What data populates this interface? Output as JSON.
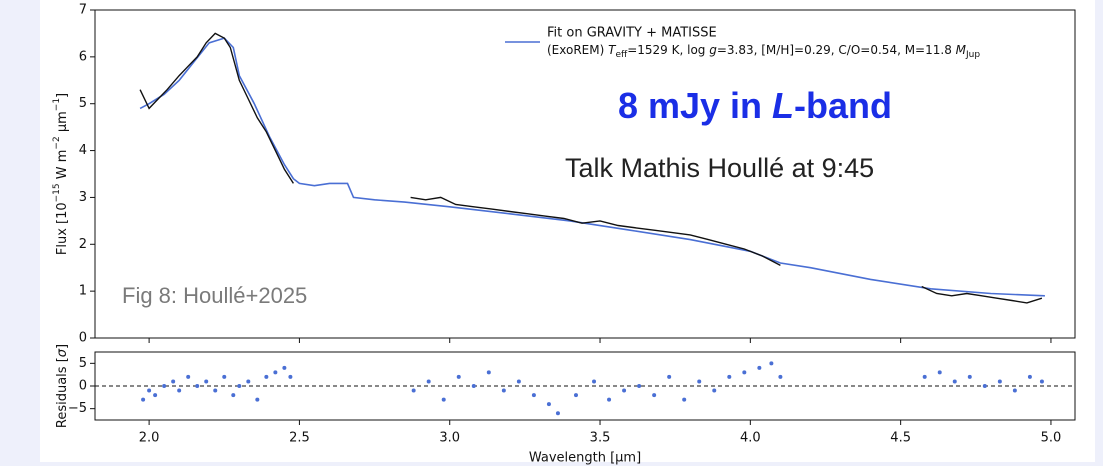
{
  "chart_data": [
    {
      "type": "line",
      "ylabel_parts": [
        "Flux [10",
        "−15",
        " W m",
        "−2",
        " μm",
        "−1",
        "]"
      ],
      "annotations": {
        "headline_parts": [
          "8 mJy in ",
          "L",
          "-band"
        ],
        "talk": "Talk Mathis Houllé at 9:45",
        "figure_ref": "Fig 8: Houllé+2025"
      },
      "xlim": [
        1.82,
        5.08
      ],
      "ylim": [
        0,
        7
      ],
      "yticks": [
        0,
        1,
        2,
        3,
        4,
        5,
        6,
        7
      ],
      "legend": "upper right",
      "series": [
        {
          "name": "Fit on GRAVITY + MATISSE",
          "name_detail_parts": [
            "(ExoREM) ",
            "T",
            "eff",
            "=1529 K, log ",
            "g",
            "=3.83, [M/H]=0.29, C/O=0.54, M=11.8 ",
            "M",
            "Jup"
          ],
          "color": "#4a6fd4",
          "x": [
            1.97,
            2.0,
            2.05,
            2.1,
            2.15,
            2.2,
            2.25,
            2.28,
            2.3,
            2.35,
            2.4,
            2.45,
            2.48,
            2.5,
            2.55,
            2.6,
            2.66,
            2.68,
            2.75,
            2.85,
            3.0,
            3.2,
            3.4,
            3.6,
            3.8,
            4.0,
            4.1,
            4.2,
            4.4,
            4.6,
            4.8,
            4.98
          ],
          "values": [
            4.9,
            5.0,
            5.2,
            5.5,
            5.9,
            6.3,
            6.4,
            6.2,
            5.6,
            5.0,
            4.3,
            3.7,
            3.4,
            3.3,
            3.25,
            3.3,
            3.3,
            3.0,
            2.95,
            2.9,
            2.8,
            2.65,
            2.5,
            2.3,
            2.1,
            1.85,
            1.6,
            1.5,
            1.25,
            1.05,
            0.95,
            0.9
          ]
        },
        {
          "color": "#111111",
          "x": [
            1.97,
            2.0,
            2.03,
            2.06,
            2.1,
            2.13,
            2.16,
            2.19,
            2.22,
            2.25,
            2.27,
            2.3,
            2.33,
            2.36,
            2.39,
            2.42,
            2.45,
            2.48,
            2.6,
            2.87,
            2.92,
            2.97,
            3.02,
            3.08,
            3.14,
            3.2,
            3.26,
            3.32,
            3.38,
            3.44,
            3.5,
            3.56,
            3.62,
            3.68,
            3.74,
            3.8,
            3.86,
            3.92,
            3.98,
            4.04,
            4.1,
            4.3,
            4.57,
            4.62,
            4.67,
            4.72,
            4.77,
            4.82,
            4.87,
            4.92,
            4.97
          ],
          "values": [
            5.3,
            4.9,
            5.1,
            5.3,
            5.6,
            5.8,
            6.0,
            6.3,
            6.5,
            6.4,
            6.2,
            5.5,
            5.1,
            4.7,
            4.4,
            4.0,
            3.6,
            3.3,
            null,
            3.0,
            2.95,
            3.0,
            2.85,
            2.8,
            2.75,
            2.7,
            2.65,
            2.6,
            2.55,
            2.45,
            2.5,
            2.4,
            2.35,
            2.3,
            2.25,
            2.2,
            2.1,
            2.0,
            1.9,
            1.75,
            1.55,
            null,
            1.1,
            0.95,
            0.9,
            0.95,
            0.9,
            0.85,
            0.8,
            0.75,
            0.85
          ]
        }
      ]
    },
    {
      "type": "scatter",
      "ylabel_parts": [
        "Residuals [",
        "σ",
        "]"
      ],
      "xlabel": "Wavelength [μm]",
      "xlim": [
        1.82,
        5.08
      ],
      "ylim": [
        -7.5,
        7.5
      ],
      "xticks": [
        {
          "value": 2,
          "label": "2.0"
        },
        {
          "value": 2.5,
          "label": "2.5"
        },
        {
          "value": 3,
          "label": "3.0"
        },
        {
          "value": 3.5,
          "label": "3.5"
        },
        {
          "value": 4,
          "label": "4.0"
        },
        {
          "value": 4.5,
          "label": "4.5"
        },
        {
          "value": 5,
          "label": "5.0"
        }
      ],
      "yticks": [
        {
          "value": -5,
          "label": "−5"
        },
        0,
        5
      ],
      "reference_line": 0,
      "color": "#4a6fd4",
      "x": [
        1.98,
        2.0,
        2.02,
        2.05,
        2.08,
        2.1,
        2.13,
        2.16,
        2.19,
        2.22,
        2.25,
        2.28,
        2.3,
        2.33,
        2.36,
        2.39,
        2.42,
        2.45,
        2.47,
        2.88,
        2.93,
        2.98,
        3.03,
        3.08,
        3.13,
        3.18,
        3.23,
        3.28,
        3.33,
        3.36,
        3.42,
        3.48,
        3.53,
        3.58,
        3.63,
        3.68,
        3.73,
        3.78,
        3.83,
        3.88,
        3.93,
        3.98,
        4.03,
        4.07,
        4.1,
        4.58,
        4.63,
        4.68,
        4.73,
        4.78,
        4.83,
        4.88,
        4.93,
        4.97
      ],
      "values": [
        -3,
        -1,
        -2,
        0,
        1,
        -1,
        2,
        0,
        1,
        -1,
        2,
        -2,
        0,
        1,
        -3,
        2,
        3,
        4,
        2,
        -1,
        1,
        -3,
        2,
        0,
        3,
        -1,
        1,
        -2,
        -4,
        -6,
        -2,
        1,
        -3,
        -1,
        0,
        -2,
        2,
        -3,
        1,
        -1,
        2,
        3,
        4,
        5,
        2,
        2,
        3,
        1,
        2,
        0,
        1,
        -1,
        2,
        1
      ]
    }
  ]
}
